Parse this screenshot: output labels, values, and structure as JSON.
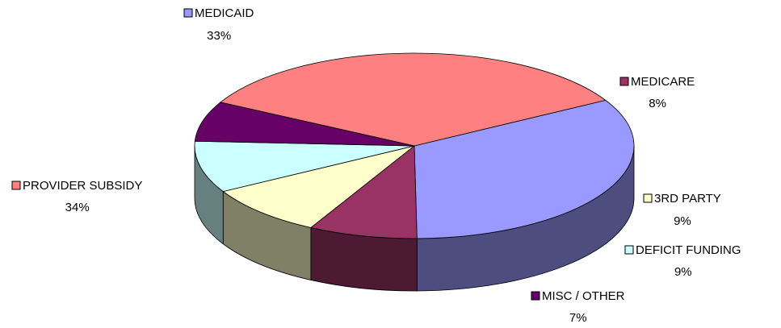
{
  "chart_data": {
    "type": "pie",
    "title": "",
    "slices": [
      {
        "name": "MEDICAID",
        "value": 33,
        "label": "33%",
        "color": "#9999FF"
      },
      {
        "name": "MEDICARE",
        "value": 8,
        "label": "8%",
        "color": "#993366"
      },
      {
        "name": "3RD PARTY",
        "value": 9,
        "label": "9%",
        "color": "#FFFFCC"
      },
      {
        "name": "DEFICIT FUNDING",
        "value": 9,
        "label": "9%",
        "color": "#CCFFFF"
      },
      {
        "name": "MISC / OTHER",
        "value": 7,
        "label": "7%",
        "color": "#660066"
      },
      {
        "name": "PROVIDER SUBSIDY",
        "value": 34,
        "label": "34%",
        "color": "#FF8080"
      }
    ],
    "style": "3d",
    "legend": "none"
  }
}
